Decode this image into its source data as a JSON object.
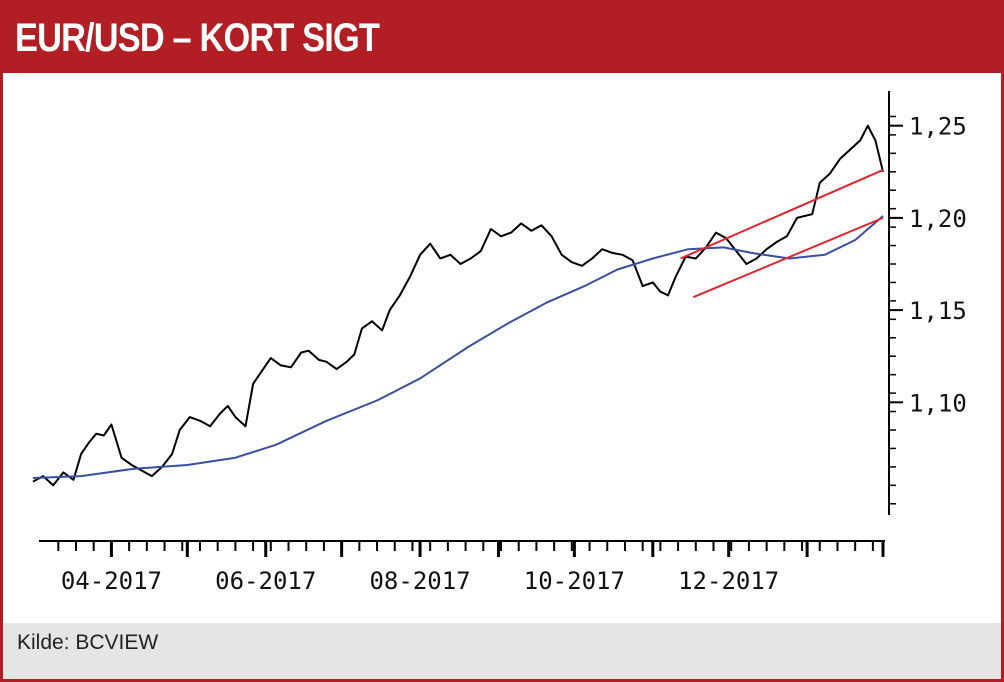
{
  "title": "EUR/USD – KORT SIGT",
  "source": "Kilde: BCVIEW",
  "colors": {
    "accent": "#b11f24",
    "price": "#000000",
    "moving_average": "#3b4fa0",
    "trend": "#e0262d"
  },
  "chart_data": {
    "type": "line",
    "title": "EUR/USD – KORT SIGT",
    "xlabel": "",
    "ylabel": "",
    "x_range": [
      "2017-03-01",
      "2018-01-31"
    ],
    "ylim": [
      1.04,
      1.265
    ],
    "y_ticks": [
      "1,25",
      "1,20",
      "1,15",
      "1,10"
    ],
    "y_tick_values": [
      1.25,
      1.2,
      1.15,
      1.1
    ],
    "x_tick_labels": [
      "04-2017",
      "06-2017",
      "08-2017",
      "10-2017",
      "12-2017"
    ],
    "x_tick_dates": [
      "2017-04-01",
      "2017-06-01",
      "2017-08-01",
      "2017-10-01",
      "2017-12-01"
    ],
    "grid": false,
    "series": [
      {
        "role": "price",
        "points": [
          [
            "2017-03-01",
            1.057
          ],
          [
            "2017-03-05",
            1.06
          ],
          [
            "2017-03-09",
            1.055
          ],
          [
            "2017-03-13",
            1.062
          ],
          [
            "2017-03-17",
            1.058
          ],
          [
            "2017-03-20",
            1.072
          ],
          [
            "2017-03-23",
            1.078
          ],
          [
            "2017-03-26",
            1.083
          ],
          [
            "2017-03-29",
            1.082
          ],
          [
            "2017-04-01",
            1.088
          ],
          [
            "2017-04-05",
            1.07
          ],
          [
            "2017-04-09",
            1.066
          ],
          [
            "2017-04-13",
            1.063
          ],
          [
            "2017-04-17",
            1.06
          ],
          [
            "2017-04-21",
            1.065
          ],
          [
            "2017-04-25",
            1.072
          ],
          [
            "2017-04-28",
            1.085
          ],
          [
            "2017-05-02",
            1.092
          ],
          [
            "2017-05-06",
            1.09
          ],
          [
            "2017-05-10",
            1.087
          ],
          [
            "2017-05-14",
            1.094
          ],
          [
            "2017-05-17",
            1.098
          ],
          [
            "2017-05-20",
            1.092
          ],
          [
            "2017-05-24",
            1.087
          ],
          [
            "2017-05-27",
            1.11
          ],
          [
            "2017-05-31",
            1.118
          ],
          [
            "2017-06-03",
            1.124
          ],
          [
            "2017-06-07",
            1.12
          ],
          [
            "2017-06-11",
            1.119
          ],
          [
            "2017-06-15",
            1.127
          ],
          [
            "2017-06-18",
            1.128
          ],
          [
            "2017-06-22",
            1.123
          ],
          [
            "2017-06-25",
            1.122
          ],
          [
            "2017-06-29",
            1.118
          ],
          [
            "2017-07-03",
            1.122
          ],
          [
            "2017-07-06",
            1.126
          ],
          [
            "2017-07-09",
            1.14
          ],
          [
            "2017-07-13",
            1.144
          ],
          [
            "2017-07-17",
            1.139
          ],
          [
            "2017-07-20",
            1.15
          ],
          [
            "2017-07-24",
            1.158
          ],
          [
            "2017-07-28",
            1.168
          ],
          [
            "2017-08-01",
            1.18
          ],
          [
            "2017-08-05",
            1.186
          ],
          [
            "2017-08-09",
            1.178
          ],
          [
            "2017-08-13",
            1.18
          ],
          [
            "2017-08-17",
            1.175
          ],
          [
            "2017-08-21",
            1.178
          ],
          [
            "2017-08-25",
            1.182
          ],
          [
            "2017-08-29",
            1.194
          ],
          [
            "2017-09-02",
            1.19
          ],
          [
            "2017-09-06",
            1.192
          ],
          [
            "2017-09-10",
            1.197
          ],
          [
            "2017-09-14",
            1.193
          ],
          [
            "2017-09-18",
            1.196
          ],
          [
            "2017-09-22",
            1.19
          ],
          [
            "2017-09-26",
            1.18
          ],
          [
            "2017-09-30",
            1.176
          ],
          [
            "2017-10-04",
            1.174
          ],
          [
            "2017-10-08",
            1.178
          ],
          [
            "2017-10-12",
            1.183
          ],
          [
            "2017-10-16",
            1.181
          ],
          [
            "2017-10-20",
            1.18
          ],
          [
            "2017-10-24",
            1.177
          ],
          [
            "2017-10-28",
            1.163
          ],
          [
            "2017-11-01",
            1.165
          ],
          [
            "2017-11-04",
            1.16
          ],
          [
            "2017-11-07",
            1.158
          ],
          [
            "2017-11-10",
            1.168
          ],
          [
            "2017-11-14",
            1.179
          ],
          [
            "2017-11-18",
            1.178
          ],
          [
            "2017-11-22",
            1.184
          ],
          [
            "2017-11-26",
            1.192
          ],
          [
            "2017-11-30",
            1.189
          ],
          [
            "2017-12-04",
            1.182
          ],
          [
            "2017-12-08",
            1.175
          ],
          [
            "2017-12-12",
            1.178
          ],
          [
            "2017-12-16",
            1.183
          ],
          [
            "2017-12-20",
            1.187
          ],
          [
            "2017-12-24",
            1.19
          ],
          [
            "2017-12-28",
            1.2
          ],
          [
            "2017-12-31",
            1.201
          ],
          [
            "2018-01-03",
            1.202
          ],
          [
            "2018-01-06",
            1.219
          ],
          [
            "2018-01-10",
            1.224
          ],
          [
            "2018-01-14",
            1.232
          ],
          [
            "2018-01-18",
            1.237
          ],
          [
            "2018-01-22",
            1.242
          ],
          [
            "2018-01-25",
            1.25
          ],
          [
            "2018-01-28",
            1.242
          ],
          [
            "2018-01-31",
            1.225
          ]
        ]
      },
      {
        "role": "moving-average",
        "points": [
          [
            "2017-03-01",
            1.059
          ],
          [
            "2017-03-20",
            1.06
          ],
          [
            "2017-04-10",
            1.064
          ],
          [
            "2017-05-01",
            1.066
          ],
          [
            "2017-05-20",
            1.07
          ],
          [
            "2017-06-05",
            1.077
          ],
          [
            "2017-06-25",
            1.09
          ],
          [
            "2017-07-15",
            1.101
          ],
          [
            "2017-08-01",
            1.113
          ],
          [
            "2017-08-20",
            1.13
          ],
          [
            "2017-09-05",
            1.143
          ],
          [
            "2017-09-20",
            1.154
          ],
          [
            "2017-10-05",
            1.163
          ],
          [
            "2017-10-18",
            1.172
          ],
          [
            "2017-11-01",
            1.178
          ],
          [
            "2017-11-15",
            1.183
          ],
          [
            "2017-11-29",
            1.184
          ],
          [
            "2017-12-10",
            1.181
          ],
          [
            "2017-12-25",
            1.178
          ],
          [
            "2018-01-08",
            1.18
          ],
          [
            "2018-01-20",
            1.188
          ],
          [
            "2018-01-31",
            1.201
          ]
        ]
      }
    ],
    "trend_lines": [
      {
        "points": [
          [
            "2017-11-12",
            1.178
          ],
          [
            "2018-01-31",
            1.226
          ]
        ]
      },
      {
        "points": [
          [
            "2017-11-17",
            1.157
          ],
          [
            "2018-01-31",
            1.2
          ]
        ]
      }
    ]
  }
}
